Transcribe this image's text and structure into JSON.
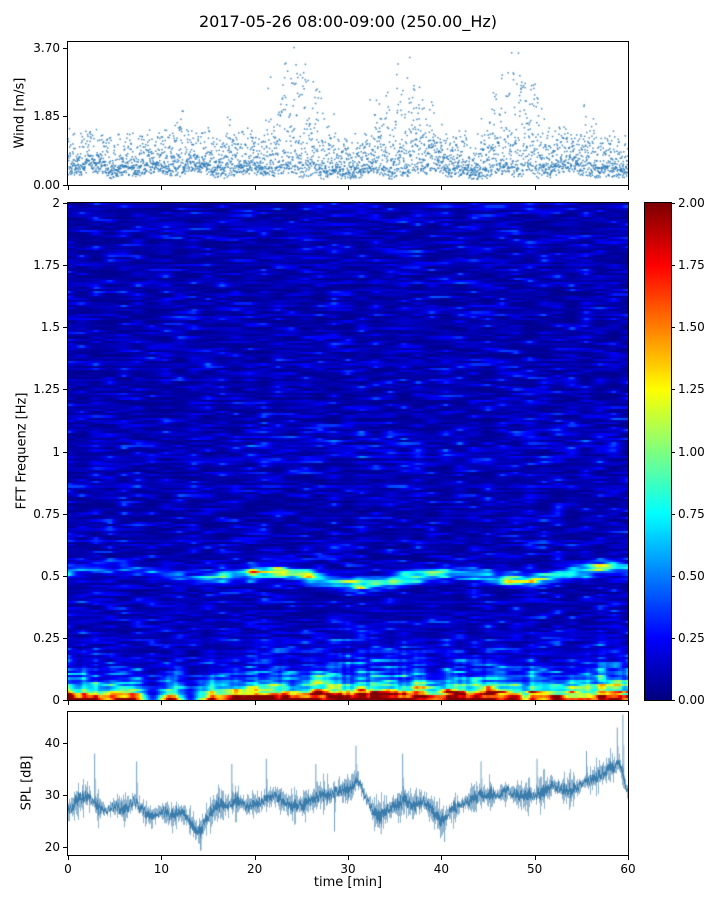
{
  "title": "2017-05-26 08:00-09:00 (250.00_Hz)",
  "colors": {
    "scatter_point": "#2878b5",
    "spl_line": "#3679a9",
    "axis": "#000000",
    "background": "#ffffff"
  },
  "chart_data": [
    {
      "type": "scatter",
      "name": "wind-speed",
      "ylabel": "Wind [m/s]",
      "ylim": [
        0,
        3.85
      ],
      "yticks": [
        {
          "v": 3.7,
          "label": "3.70"
        },
        {
          "v": 1.85,
          "label": "1.85"
        },
        {
          "v": 0.0,
          "label": "0.00"
        }
      ],
      "xlim": [
        0,
        60
      ],
      "points_per_minute": 60,
      "baseline_range": [
        0.1,
        1.3
      ],
      "gust_windows": [
        {
          "t0": 10.5,
          "t1": 13.5,
          "peak": 2.2
        },
        {
          "t0": 16.5,
          "t1": 18.5,
          "peak": 1.7
        },
        {
          "t0": 19.5,
          "t1": 29.5,
          "peak": 3.6
        },
        {
          "t0": 31.0,
          "t1": 41.0,
          "peak": 2.9
        },
        {
          "t0": 43.5,
          "t1": 53.0,
          "peak": 3.4
        },
        {
          "t0": 54.5,
          "t1": 57.0,
          "peak": 1.9
        }
      ]
    },
    {
      "type": "heatmap",
      "name": "spectrogram",
      "ylabel": "FFT Frequenz [Hz]",
      "ylim": [
        0,
        2
      ],
      "xlim": [
        0,
        60
      ],
      "clim": [
        0,
        2
      ],
      "colormap": "jet",
      "yticks": [
        {
          "v": 2,
          "label": "2"
        },
        {
          "v": 1.75,
          "label": "1.75"
        },
        {
          "v": 1.5,
          "label": "1.5"
        },
        {
          "v": 1.25,
          "label": "1.25"
        },
        {
          "v": 1,
          "label": "1"
        },
        {
          "v": 0.75,
          "label": "0.75"
        },
        {
          "v": 0.5,
          "label": "0.5"
        },
        {
          "v": 0.25,
          "label": "0.25"
        },
        {
          "v": 0,
          "label": "0"
        }
      ],
      "colorbar_ticks": [
        {
          "v": 2.0,
          "label": "2.00"
        },
        {
          "v": 1.75,
          "label": "1.75"
        },
        {
          "v": 1.5,
          "label": "1.50"
        },
        {
          "v": 1.25,
          "label": "1.25"
        },
        {
          "v": 1.0,
          "label": "1.00"
        },
        {
          "v": 0.75,
          "label": "0.75"
        },
        {
          "v": 0.5,
          "label": "0.50"
        },
        {
          "v": 0.25,
          "label": "0.25"
        },
        {
          "v": 0.0,
          "label": "0.00"
        }
      ],
      "tonal_band": {
        "center_hz": 0.5,
        "width_hz": 0.017,
        "amp_per_min": [
          0.3,
          0.28,
          0.3,
          0.32,
          0.3,
          0.28,
          0.3,
          0.32,
          0.3,
          0.28,
          0.3,
          0.35,
          0.32,
          0.3,
          0.32,
          0.38,
          0.42,
          0.55,
          0.68,
          0.78,
          0.88,
          0.8,
          0.95,
          0.9,
          0.8,
          0.72,
          0.88,
          0.8,
          0.72,
          0.8,
          0.9,
          0.95,
          0.8,
          0.72,
          0.8,
          0.72,
          0.65,
          0.72,
          0.62,
          0.55,
          0.6,
          0.52,
          0.45,
          0.4,
          0.45,
          0.55,
          0.72,
          0.88,
          0.95,
          0.9,
          0.82,
          0.9,
          0.95,
          0.88,
          0.8,
          0.72,
          0.88,
          0.8,
          0.55,
          0.45,
          0.42
        ]
      },
      "low_freq_amp_per_min": [
        2.1,
        2.0,
        1.9,
        1.8,
        1.6,
        1.7,
        1.8,
        1.6,
        1.5,
        1.2,
        1.3,
        1.5,
        1.3,
        1.2,
        1.4,
        1.7,
        1.8,
        1.9,
        1.8,
        1.9,
        2.0,
        1.9,
        1.8,
        1.9,
        1.8,
        1.7,
        1.8,
        1.9,
        2.0,
        2.1,
        2.2,
        2.1,
        2.2,
        2.0,
        1.9,
        1.8,
        2.0,
        2.1,
        1.9,
        1.8,
        1.7,
        1.9,
        1.8,
        1.7,
        1.9,
        2.0,
        1.9,
        1.8,
        1.7,
        1.6,
        1.8,
        1.7,
        1.6,
        1.7,
        1.6,
        1.7,
        1.8,
        1.9,
        1.8,
        1.9,
        1.8
      ],
      "burst_amp_per_min": [
        0.5,
        0.6,
        0.7,
        0.5,
        0.6,
        0.7,
        0.6,
        0.5,
        0.4,
        0.2,
        0.3,
        0.4,
        0.3,
        0.2,
        0.3,
        0.6,
        0.7,
        0.6,
        0.7,
        0.6,
        0.7,
        0.8,
        0.7,
        0.8,
        0.7,
        0.6,
        0.7,
        0.8,
        0.9,
        0.8,
        0.9,
        1.0,
        0.9,
        0.8,
        0.7,
        0.6,
        0.8,
        0.9,
        0.7,
        0.6,
        0.5,
        0.7,
        0.6,
        0.5,
        0.6,
        0.8,
        0.7,
        0.6,
        0.8,
        0.7,
        0.6,
        0.5,
        0.6,
        0.5,
        0.4,
        0.5,
        0.6,
        0.8,
        0.9,
        0.8,
        0.6
      ],
      "quiet_columns_min": [
        9.0,
        13.2
      ]
    },
    {
      "type": "line",
      "name": "spl",
      "ylabel": "SPL [dB]",
      "xlabel": "time [min]",
      "ylim": [
        18.5,
        46
      ],
      "yticks": [
        {
          "v": 40,
          "label": "40"
        },
        {
          "v": 30,
          "label": "30"
        },
        {
          "v": 20,
          "label": "20"
        }
      ],
      "xticks": [
        {
          "v": 0,
          "label": "0"
        },
        {
          "v": 10,
          "label": "10"
        },
        {
          "v": 20,
          "label": "20"
        },
        {
          "v": 30,
          "label": "30"
        },
        {
          "v": 40,
          "label": "40"
        },
        {
          "v": 50,
          "label": "50"
        },
        {
          "v": 60,
          "label": "60"
        }
      ],
      "mean_db_per_min": [
        27,
        29,
        30,
        28,
        27,
        28,
        27,
        29,
        27,
        26,
        27,
        26,
        27,
        25,
        23,
        26,
        28,
        28,
        29,
        28,
        28,
        29,
        30,
        29,
        28,
        28,
        29,
        30,
        30,
        31,
        31,
        33,
        29,
        26,
        27,
        28,
        29,
        28,
        29,
        27,
        25,
        27,
        28,
        29,
        30,
        30,
        30,
        31,
        30,
        30,
        30,
        31,
        32,
        31,
        31,
        32,
        33,
        34,
        35,
        36,
        30
      ],
      "spread_db": 2.2,
      "spikes": [
        {
          "t": 2.8,
          "to": 38
        },
        {
          "t": 7.3,
          "to": 36.5
        },
        {
          "t": 14.2,
          "to": 19.5
        },
        {
          "t": 17.5,
          "to": 36
        },
        {
          "t": 21.2,
          "to": 37
        },
        {
          "t": 26.5,
          "to": 36
        },
        {
          "t": 28.5,
          "to": 23
        },
        {
          "t": 30.8,
          "to": 39.5
        },
        {
          "t": 33.5,
          "to": 22.5
        },
        {
          "t": 35.8,
          "to": 38
        },
        {
          "t": 40.3,
          "to": 21
        },
        {
          "t": 44.2,
          "to": 36.5
        },
        {
          "t": 50.2,
          "to": 37
        },
        {
          "t": 55.5,
          "to": 38.5
        },
        {
          "t": 58.8,
          "to": 43
        },
        {
          "t": 59.4,
          "to": 45.5
        }
      ]
    }
  ]
}
